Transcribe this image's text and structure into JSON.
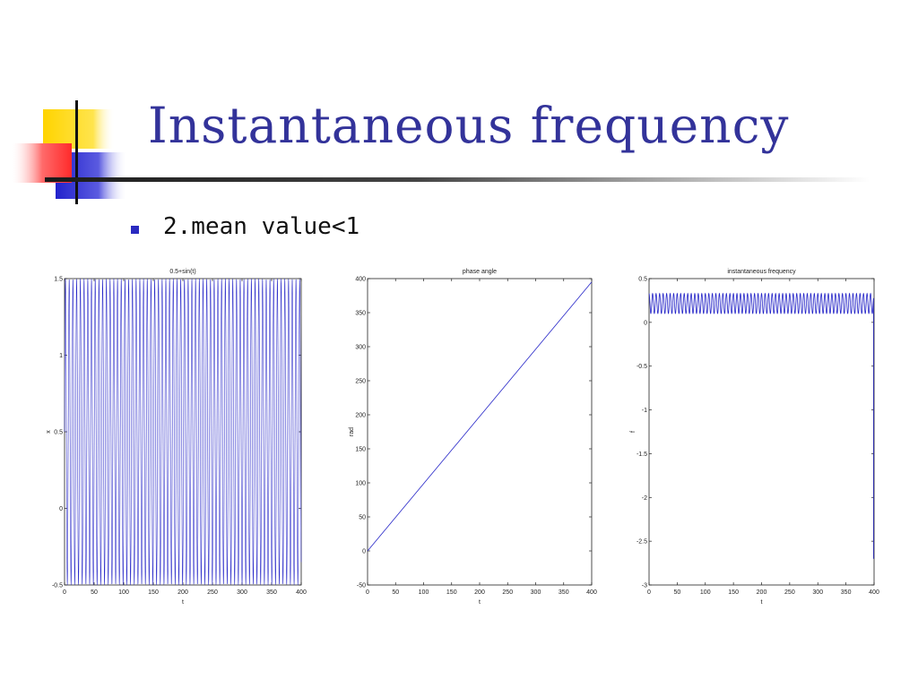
{
  "slide": {
    "title": "Instantaneous frequency",
    "bullets": [
      "2.mean value<1"
    ]
  },
  "colors": {
    "title": "#33339a",
    "bullet": "#2a2ac0",
    "line": "#2626c8",
    "axis": "#222222"
  },
  "chart_data": [
    {
      "type": "line",
      "title": "0.5+sin(t)",
      "xlabel": "t",
      "ylabel": "x",
      "xlim": [
        0,
        400
      ],
      "ylim": [
        -0.5,
        1.5
      ],
      "xticks": [
        0,
        50,
        100,
        150,
        200,
        250,
        300,
        350,
        400
      ],
      "yticks": [
        -0.5,
        0,
        0.5,
        1,
        1.5
      ],
      "grid": false,
      "series": [
        {
          "formula": "0.5+sin(t)",
          "x_range": [
            0,
            400
          ]
        }
      ]
    },
    {
      "type": "line",
      "title": "phase angle",
      "xlabel": "t",
      "ylabel": "rad",
      "xlim": [
        0,
        400
      ],
      "ylim": [
        -50,
        400
      ],
      "xticks": [
        0,
        50,
        100,
        150,
        200,
        250,
        300,
        350,
        400
      ],
      "yticks": [
        -50,
        0,
        50,
        100,
        150,
        200,
        250,
        300,
        350,
        400
      ],
      "grid": false,
      "series": [
        {
          "x": [
            0,
            400
          ],
          "y": [
            0,
            395
          ]
        }
      ]
    },
    {
      "type": "line",
      "title": "instantaneous frequency",
      "xlabel": "t",
      "ylabel": "f",
      "xlim": [
        0,
        400
      ],
      "ylim": [
        -3,
        0.5
      ],
      "xticks": [
        0,
        50,
        100,
        150,
        200,
        250,
        300,
        350,
        400
      ],
      "yticks": [
        -3,
        -2.5,
        -2,
        -1.5,
        -1,
        -0.5,
        0,
        0.5
      ],
      "grid": false,
      "series": [
        {
          "oscillation_min": 0.1,
          "oscillation_max": 0.33,
          "cycles": 64,
          "end_value": -2.7
        }
      ]
    }
  ]
}
